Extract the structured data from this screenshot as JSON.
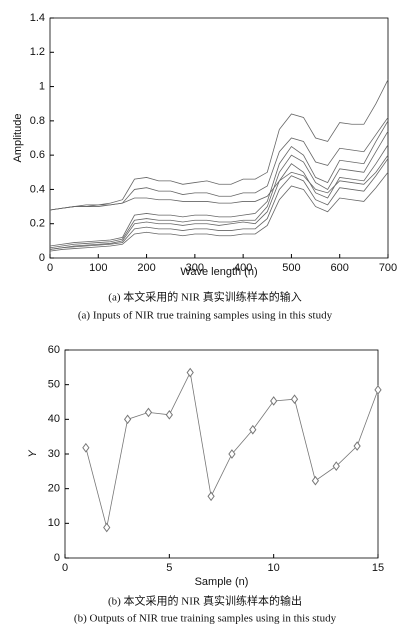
{
  "chart_data": [
    {
      "type": "line",
      "x_label": "Wave length (n)",
      "y_label": "Amplitude",
      "caption_cn": "(a) 本文采用的 NIR 真实训练样本的输入",
      "caption_en": "(a) Inputs of NIR true training samples using in this study",
      "xlim": [
        0,
        700
      ],
      "ylim": [
        0,
        1.4
      ],
      "xticks": [
        0,
        100,
        200,
        300,
        400,
        500,
        600,
        700
      ],
      "yticks": [
        0,
        0.2,
        0.4,
        0.6,
        0.8,
        1,
        1.2,
        1.4
      ],
      "x": [
        0,
        25,
        50,
        75,
        100,
        125,
        150,
        175,
        200,
        225,
        250,
        275,
        300,
        325,
        350,
        375,
        400,
        425,
        450,
        475,
        500,
        525,
        550,
        575,
        600,
        625,
        650,
        675,
        700
      ],
      "series": [
        {
          "color": "#666666",
          "values": [
            0.28,
            0.29,
            0.3,
            0.31,
            0.31,
            0.32,
            0.34,
            0.46,
            0.47,
            0.45,
            0.45,
            0.43,
            0.44,
            0.45,
            0.43,
            0.43,
            0.46,
            0.46,
            0.5,
            0.75,
            0.84,
            0.82,
            0.7,
            0.68,
            0.79,
            0.78,
            0.78,
            0.9,
            1.04
          ]
        },
        {
          "color": "#666666",
          "values": [
            0.28,
            0.29,
            0.3,
            0.3,
            0.31,
            0.31,
            0.32,
            0.4,
            0.41,
            0.39,
            0.39,
            0.37,
            0.38,
            0.38,
            0.36,
            0.36,
            0.38,
            0.38,
            0.42,
            0.62,
            0.7,
            0.68,
            0.56,
            0.54,
            0.64,
            0.63,
            0.62,
            0.72,
            0.82
          ]
        },
        {
          "color": "#666666",
          "values": [
            0.28,
            0.29,
            0.3,
            0.3,
            0.3,
            0.31,
            0.32,
            0.35,
            0.35,
            0.34,
            0.34,
            0.33,
            0.33,
            0.33,
            0.32,
            0.32,
            0.33,
            0.33,
            0.36,
            0.45,
            0.5,
            0.48,
            0.4,
            0.38,
            0.45,
            0.44,
            0.43,
            0.5,
            0.6
          ]
        },
        {
          "color": "#666666",
          "values": [
            0.04,
            0.05,
            0.055,
            0.06,
            0.065,
            0.07,
            0.08,
            0.14,
            0.15,
            0.14,
            0.14,
            0.13,
            0.14,
            0.14,
            0.13,
            0.13,
            0.14,
            0.14,
            0.19,
            0.34,
            0.42,
            0.4,
            0.3,
            0.27,
            0.35,
            0.34,
            0.33,
            0.41,
            0.5
          ]
        },
        {
          "color": "#666666",
          "values": [
            0.05,
            0.06,
            0.065,
            0.07,
            0.075,
            0.08,
            0.09,
            0.17,
            0.18,
            0.17,
            0.17,
            0.16,
            0.17,
            0.17,
            0.16,
            0.16,
            0.17,
            0.17,
            0.23,
            0.4,
            0.48,
            0.45,
            0.34,
            0.31,
            0.41,
            0.4,
            0.39,
            0.48,
            0.58
          ]
        },
        {
          "color": "#666666",
          "values": [
            0.05,
            0.06,
            0.07,
            0.075,
            0.08,
            0.085,
            0.1,
            0.2,
            0.21,
            0.2,
            0.2,
            0.19,
            0.2,
            0.2,
            0.19,
            0.2,
            0.21,
            0.2,
            0.27,
            0.45,
            0.55,
            0.5,
            0.38,
            0.35,
            0.47,
            0.46,
            0.45,
            0.55,
            0.66
          ]
        },
        {
          "color": "#666666",
          "values": [
            0.06,
            0.07,
            0.08,
            0.085,
            0.09,
            0.095,
            0.11,
            0.22,
            0.23,
            0.22,
            0.22,
            0.21,
            0.22,
            0.22,
            0.21,
            0.21,
            0.22,
            0.22,
            0.3,
            0.5,
            0.6,
            0.56,
            0.44,
            0.4,
            0.52,
            0.51,
            0.5,
            0.62,
            0.74
          ]
        },
        {
          "color": "#666666",
          "values": [
            0.07,
            0.08,
            0.09,
            0.095,
            0.1,
            0.105,
            0.12,
            0.25,
            0.26,
            0.25,
            0.25,
            0.24,
            0.25,
            0.25,
            0.24,
            0.24,
            0.25,
            0.26,
            0.33,
            0.55,
            0.65,
            0.6,
            0.47,
            0.44,
            0.57,
            0.56,
            0.55,
            0.68,
            0.8
          ]
        }
      ]
    },
    {
      "type": "line",
      "x_label": "Sample (n)",
      "y_label": "Y",
      "caption_cn": "(b) 本文采用的 NIR 真实训练样本的输出",
      "caption_en": "(b) Outputs of NIR true training samples using in this study",
      "xlim": [
        0,
        15
      ],
      "ylim": [
        0,
        60
      ],
      "xticks": [
        0,
        5,
        10,
        15
      ],
      "yticks": [
        0,
        10,
        20,
        30,
        40,
        50,
        60
      ],
      "marker": "diamond",
      "x": [
        1,
        2,
        3,
        4,
        5,
        6,
        7,
        8,
        9,
        10,
        11,
        12,
        13,
        14,
        15
      ],
      "series": [
        {
          "color": "#777777",
          "values": [
            31.8,
            8.8,
            40,
            42,
            41.3,
            53.5,
            17.8,
            30,
            37,
            45.3,
            45.8,
            22.3,
            26.5,
            32.3,
            48.5
          ]
        }
      ]
    }
  ]
}
